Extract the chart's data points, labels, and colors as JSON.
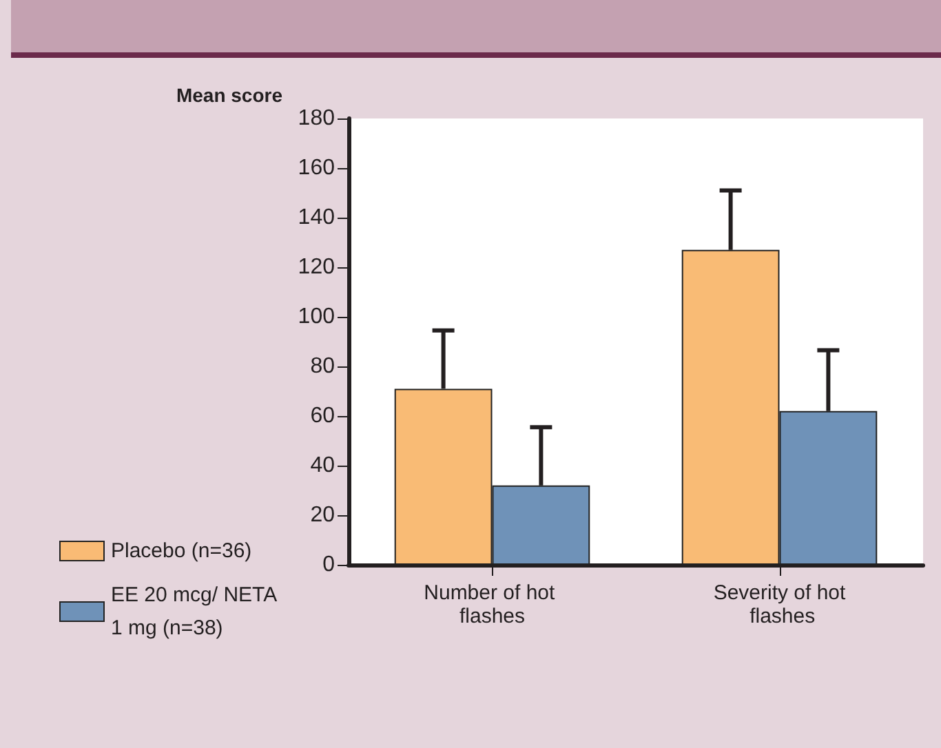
{
  "chart_data": {
    "type": "bar",
    "ylabel": "Mean score",
    "categories": [
      "Number of hot flashes",
      "Severity of hot flashes"
    ],
    "series": [
      {
        "name": "Placebo (n=36)",
        "color": "#f9bb75",
        "values": [
          71,
          127
        ],
        "errors": [
          [
            71,
            94.5
          ],
          [
            127,
            151
          ]
        ]
      },
      {
        "name": "EE 20 mcg/ NETA 1 mg (n=38)",
        "color": "#6f92b8",
        "values": [
          32,
          62
        ],
        "errors": [
          [
            32,
            55.5
          ],
          [
            62,
            86.5
          ]
        ]
      }
    ],
    "ylim": [
      0,
      180
    ],
    "yticks": [
      0,
      20,
      40,
      60,
      80,
      100,
      120,
      140,
      160,
      180
    ],
    "grid": false,
    "legend": "bottom left"
  }
}
